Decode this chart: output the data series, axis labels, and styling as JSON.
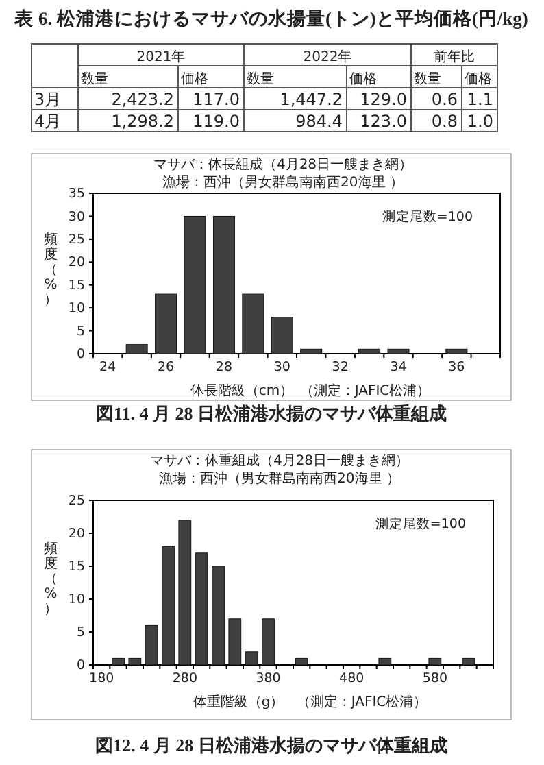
{
  "chart_data": [
    {
      "type": "other",
      "title": "表 6. 松浦港におけるマサバの水揚量(トン)と平均価格(円/kg)",
      "annotations": [
        "2021年",
        "2022年",
        "前年比",
        "数量",
        "価格",
        "数量",
        "価格",
        "数量",
        "価格",
        "3月",
        "2,423.2",
        "117.0",
        "1,447.2",
        "129.0",
        "0.6",
        "1.1",
        "4月",
        "1,298.2",
        "119.0",
        "984.4",
        "123.0",
        "0.8",
        "1.0"
      ]
    },
    {
      "type": "bar",
      "title": "マサバ：体長組成（4月28日一艘まき網）",
      "subtitle": "漁場：西沖（男女群島南南西20海里 ）",
      "xlabel": "体長階級（cm）",
      "ylabel": "頻度（%）",
      "color": "#404040",
      "categories": [
        "24",
        null,
        "26",
        null,
        "28",
        null,
        "30",
        null,
        "32",
        null,
        "34",
        null,
        "36",
        null
      ],
      "values": [
        0,
        2,
        13,
        30,
        30,
        13,
        8,
        1,
        0,
        1,
        1,
        0,
        1,
        0
      ],
      "ylim": [
        0,
        35
      ],
      "yticks": [
        0,
        5,
        10,
        15,
        20,
        25,
        30,
        35
      ],
      "grid": false,
      "annotations": [
        "測定尾数=100",
        "（測定：JAFIC松浦）",
        "図11. 4 月 28 日松浦港水揚のマサバ体重組成"
      ]
    },
    {
      "type": "bar",
      "title": "マサバ：体重組成（4月28日一艘まき網）",
      "subtitle": "漁場：西沖（男女群島南南西20海里 ）",
      "xlabel": "体重階級（g）",
      "ylabel": "頻度（%）",
      "color": "#404040",
      "categories": [
        "180",
        null,
        null,
        null,
        null,
        "280",
        null,
        null,
        null,
        null,
        "380",
        null,
        null,
        null,
        null,
        "480",
        null,
        null,
        null,
        null,
        "580",
        null,
        null,
        null
      ],
      "values": [
        0,
        1,
        1,
        6,
        18,
        22,
        17,
        15,
        7,
        2,
        7,
        0,
        1,
        0,
        0,
        0,
        0,
        1,
        0,
        0,
        1,
        0,
        1,
        0
      ],
      "ylim": [
        0,
        25
      ],
      "yticks": [
        0,
        5,
        10,
        15,
        20,
        25
      ],
      "grid": false,
      "annotations": [
        "測定尾数=100",
        "（測定：JAFIC松浦）",
        "図12. 4 月 28 日松浦港水揚のマサバ体重組成"
      ]
    }
  ]
}
